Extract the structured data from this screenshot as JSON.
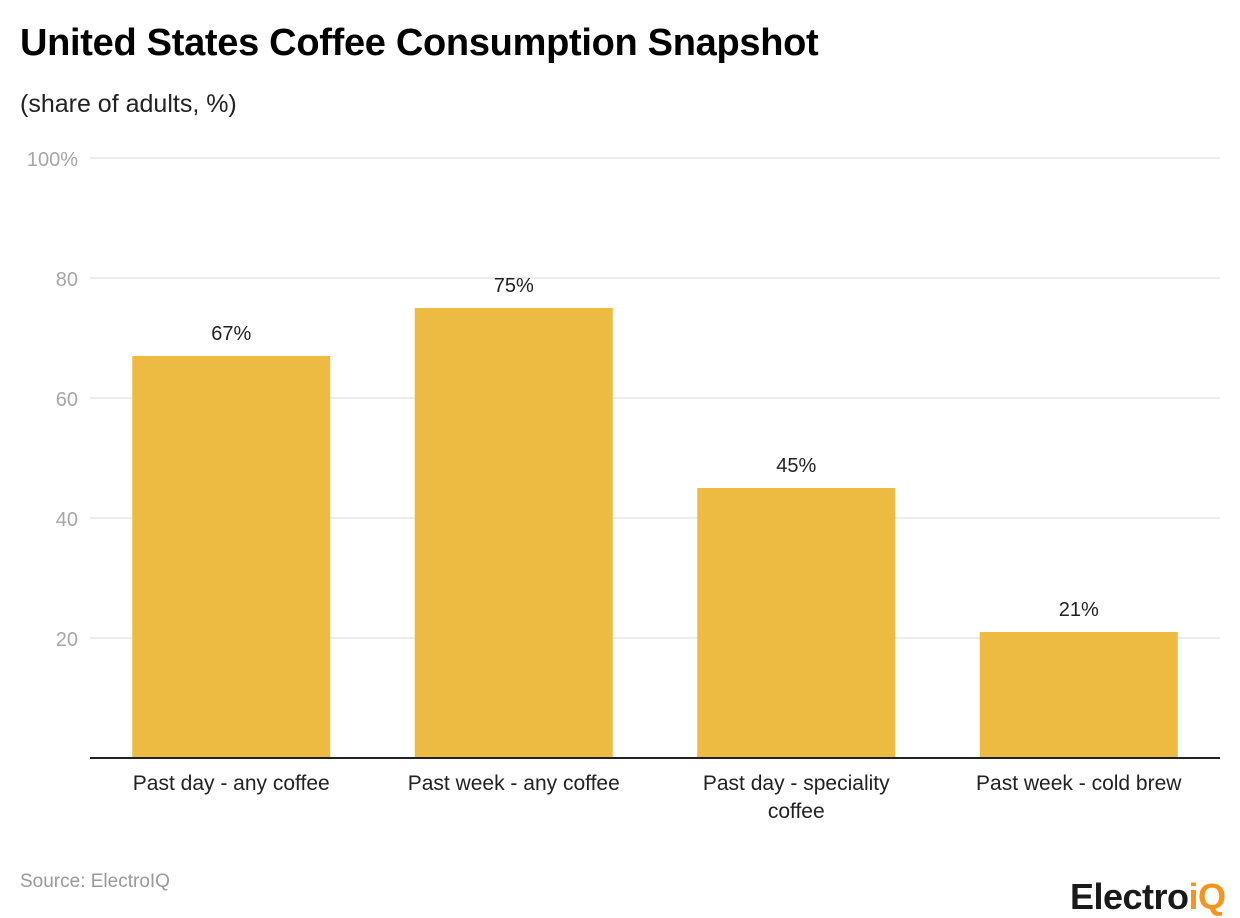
{
  "title": "United States Coffee Consumption Snapshot",
  "subtitle": "(share of adults, %)",
  "source": "Source: ElectroIQ",
  "logo": {
    "main": "Electro",
    "accent": "iQ"
  },
  "colors": {
    "bar": "#EDBB42",
    "grid": "#E5E5E5",
    "axis": "#222222",
    "tick": "#A6A6A6"
  },
  "chart_data": {
    "type": "bar",
    "categories": [
      [
        "Past day - any coffee"
      ],
      [
        "Past week - any coffee"
      ],
      [
        "Past day - speciality",
        "coffee"
      ],
      [
        "Past week - cold brew"
      ]
    ],
    "values": [
      67,
      75,
      45,
      21
    ],
    "data_labels": [
      "67%",
      "75%",
      "45%",
      "21%"
    ],
    "ylim": [
      0,
      100
    ],
    "yticks": [
      20,
      40,
      60,
      80,
      100
    ],
    "ytick_labels": [
      "20",
      "40",
      "60",
      "80",
      "100%"
    ],
    "grid": true,
    "xlabel": "",
    "ylabel": ""
  }
}
